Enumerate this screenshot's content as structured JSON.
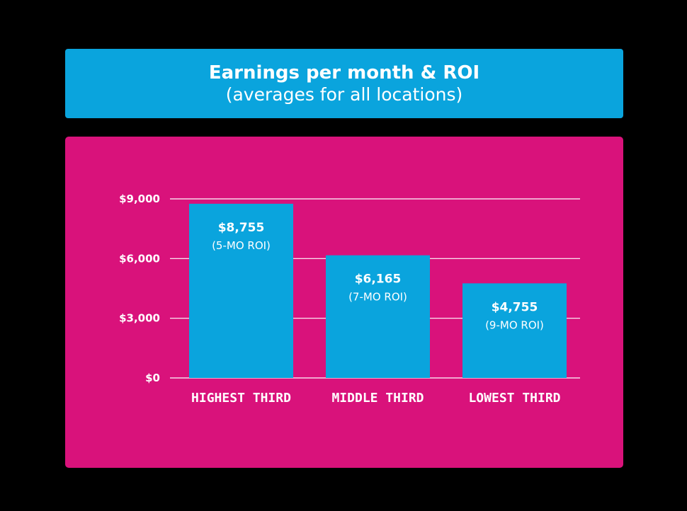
{
  "header": {
    "title": "Earnings per month & ROI",
    "subtitle": "(averages for all locations)"
  },
  "colors": {
    "background": "#000000",
    "title_box": "#0aa4dd",
    "panel": "#d9127b",
    "bar": "#0aa4dd",
    "gridline": "#ffffff",
    "text": "#ffffff"
  },
  "chart_data": {
    "type": "bar",
    "title": "Earnings per month & ROI",
    "subtitle": "(averages for all locations)",
    "categories": [
      "HIGHEST THIRD",
      "MIDDLE THIRD",
      "LOWEST THIRD"
    ],
    "values": [
      8755,
      6165,
      4755
    ],
    "value_labels": [
      "$8,755",
      "$6,165",
      "$4,755"
    ],
    "roi_labels": [
      "(5-MO ROI)",
      "(7-MO ROI)",
      "(9-MO ROI)"
    ],
    "yticks": [
      0,
      3000,
      6000,
      9000
    ],
    "ytick_labels": [
      "$0",
      "$3,000",
      "$6,000",
      "$9,000"
    ],
    "ylim": [
      0,
      9000
    ],
    "grid": true,
    "xlabel": "",
    "ylabel": ""
  }
}
